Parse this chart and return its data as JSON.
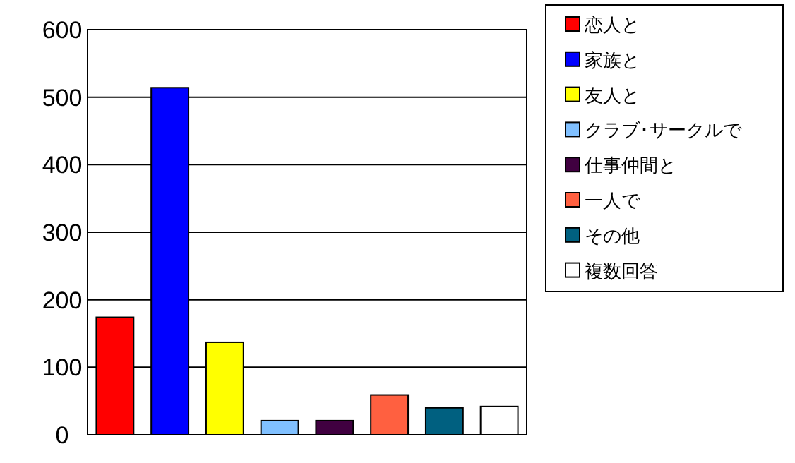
{
  "chart_data": {
    "type": "bar",
    "categories": [
      null,
      null,
      null,
      null,
      null,
      null,
      null,
      null
    ],
    "series": [
      {
        "name": "恋人と",
        "color": "#ff0000",
        "values": [
          174,
          null,
          null,
          null,
          null,
          null,
          null,
          null
        ]
      },
      {
        "name": "家族と",
        "color": "#0000ff",
        "values": [
          null,
          514,
          null,
          null,
          null,
          null,
          null,
          null
        ]
      },
      {
        "name": "友人と",
        "color": "#ffff00",
        "values": [
          null,
          null,
          137,
          null,
          null,
          null,
          null,
          null
        ]
      },
      {
        "name": "クラブ･サークルで",
        "color": "#80c0ff",
        "values": [
          null,
          null,
          null,
          21,
          null,
          null,
          null,
          null
        ]
      },
      {
        "name": "仕事仲間と",
        "color": "#400040",
        "values": [
          null,
          null,
          null,
          null,
          21,
          null,
          null,
          null
        ]
      },
      {
        "name": "一人で",
        "color": "#ff6040",
        "values": [
          null,
          null,
          null,
          null,
          null,
          59,
          null,
          null
        ]
      },
      {
        "name": "その他",
        "color": "#006080",
        "values": [
          null,
          null,
          null,
          null,
          null,
          null,
          40,
          null
        ]
      },
      {
        "name": "複数回答",
        "color": "#ffffff",
        "values": [
          null,
          null,
          null,
          null,
          null,
          null,
          null,
          42
        ]
      }
    ],
    "ylim": [
      0,
      600
    ],
    "yticks": [
      0,
      100,
      200,
      300,
      400,
      500,
      600
    ],
    "grid": "y",
    "legend": "right"
  }
}
